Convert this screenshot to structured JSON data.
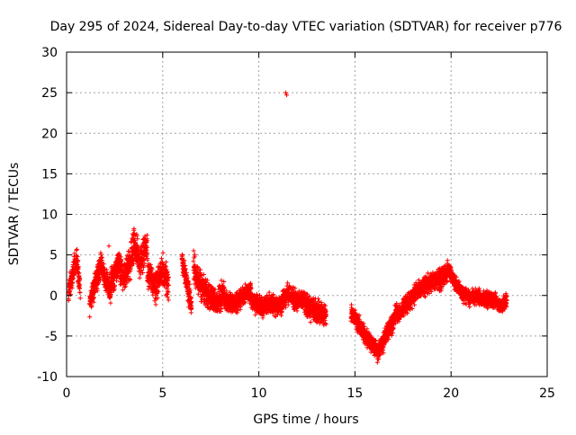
{
  "chart_data": {
    "type": "scatter",
    "title": "Day 295 of 2024, Sidereal Day-to-day VTEC variation (SDTVAR) for receiver p776",
    "xlabel": "GPS time / hours",
    "ylabel": "SDTVAR / TECUs",
    "xlim": [
      0,
      25
    ],
    "ylim": [
      -10,
      30
    ],
    "xticks": [
      0,
      5,
      10,
      15,
      20,
      25
    ],
    "yticks": [
      -10,
      -5,
      0,
      5,
      10,
      15,
      20,
      25,
      30
    ],
    "grid": true,
    "marker": "+",
    "color": "#ff0000",
    "series": [
      {
        "name": "SDTVAR",
        "segments": [
          {
            "t0": 0.1,
            "t1": 0.7,
            "pts": [
              [
                0.1,
                0.5
              ],
              [
                0.3,
                2.5
              ],
              [
                0.5,
                4.5
              ],
              [
                0.7,
                1.0
              ]
            ],
            "jitter": 1.2
          },
          {
            "t0": 1.2,
            "t1": 2.3,
            "pts": [
              [
                1.2,
                -0.8
              ],
              [
                1.5,
                1.5
              ],
              [
                1.8,
                4.0
              ],
              [
                2.0,
                2.0
              ],
              [
                2.3,
                0.5
              ]
            ],
            "jitter": 1.3
          },
          {
            "t0": 2.3,
            "t1": 3.2,
            "pts": [
              [
                2.3,
                1.5
              ],
              [
                2.7,
                4.0
              ],
              [
                3.0,
                2.0
              ],
              [
                3.2,
                3.5
              ]
            ],
            "jitter": 1.5
          },
          {
            "t0": 3.2,
            "t1": 4.2,
            "pts": [
              [
                3.2,
                3.0
              ],
              [
                3.5,
                6.5
              ],
              [
                3.8,
                4.0
              ],
              [
                4.2,
                6.0
              ]
            ],
            "jitter": 1.6
          },
          {
            "t0": 4.2,
            "t1": 5.3,
            "pts": [
              [
                4.2,
                3.0
              ],
              [
                4.6,
                1.0
              ],
              [
                5.0,
                3.0
              ],
              [
                5.3,
                1.5
              ]
            ],
            "jitter": 1.6
          },
          {
            "t0": 6.0,
            "t1": 6.5,
            "pts": [
              [
                6.0,
                4.5
              ],
              [
                6.2,
                2.0
              ],
              [
                6.5,
                -1.5
              ]
            ],
            "jitter": 1.2
          },
          {
            "t0": 6.6,
            "t1": 8.2,
            "pts": [
              [
                6.6,
                3.5
              ],
              [
                7.0,
                1.0
              ],
              [
                7.4,
                0.0
              ],
              [
                7.8,
                -1.0
              ],
              [
                8.2,
                0.5
              ]
            ],
            "jitter": 1.5
          },
          {
            "t0": 8.2,
            "t1": 9.6,
            "pts": [
              [
                8.2,
                -0.5
              ],
              [
                8.8,
                -1.0
              ],
              [
                9.2,
                0.0
              ],
              [
                9.6,
                0.5
              ]
            ],
            "jitter": 1.0
          },
          {
            "t0": 9.6,
            "t1": 11.2,
            "pts": [
              [
                9.6,
                -0.5
              ],
              [
                10.1,
                -1.5
              ],
              [
                10.6,
                -1.0
              ],
              [
                11.2,
                -1.5
              ]
            ],
            "jitter": 1.0
          },
          {
            "t0": 11.2,
            "t1": 12.4,
            "pts": [
              [
                11.2,
                -0.5
              ],
              [
                11.6,
                0.2
              ],
              [
                12.0,
                -0.8
              ],
              [
                12.4,
                -0.5
              ]
            ],
            "jitter": 1.0
          },
          {
            "t0": 12.4,
            "t1": 13.5,
            "pts": [
              [
                12.4,
                -1.0
              ],
              [
                13.0,
                -2.0
              ],
              [
                13.5,
                -2.5
              ]
            ],
            "jitter": 1.2
          },
          {
            "t0": 14.8,
            "t1": 16.2,
            "pts": [
              [
                14.8,
                -2.0
              ],
              [
                15.3,
                -4.0
              ],
              [
                15.8,
                -6.0
              ],
              [
                16.2,
                -7.0
              ]
            ],
            "jitter": 0.9
          },
          {
            "t0": 16.2,
            "t1": 17.2,
            "pts": [
              [
                16.2,
                -7.0
              ],
              [
                16.6,
                -5.0
              ],
              [
                17.0,
                -3.0
              ],
              [
                17.2,
                -2.0
              ]
            ],
            "jitter": 1.0
          },
          {
            "t0": 17.2,
            "t1": 19.8,
            "pts": [
              [
                17.2,
                -2.5
              ],
              [
                18.0,
                0.0
              ],
              [
                18.8,
                1.5
              ],
              [
                19.5,
                2.0
              ],
              [
                19.8,
                2.5
              ]
            ],
            "jitter": 1.0
          },
          {
            "t0": 19.8,
            "t1": 21.0,
            "pts": [
              [
                19.8,
                3.5
              ],
              [
                20.2,
                1.5
              ],
              [
                20.6,
                0.2
              ],
              [
                21.0,
                -0.2
              ]
            ],
            "jitter": 0.8
          },
          {
            "t0": 21.0,
            "t1": 22.9,
            "pts": [
              [
                21.0,
                0.0
              ],
              [
                21.8,
                -0.5
              ],
              [
                22.3,
                -0.5
              ],
              [
                22.6,
                -1.5
              ],
              [
                22.9,
                -0.5
              ]
            ],
            "jitter": 0.8
          }
        ],
        "outliers": [
          [
            11.4,
            25.0
          ],
          [
            11.45,
            24.7
          ],
          [
            2.2,
            6.1
          ]
        ]
      }
    ]
  }
}
